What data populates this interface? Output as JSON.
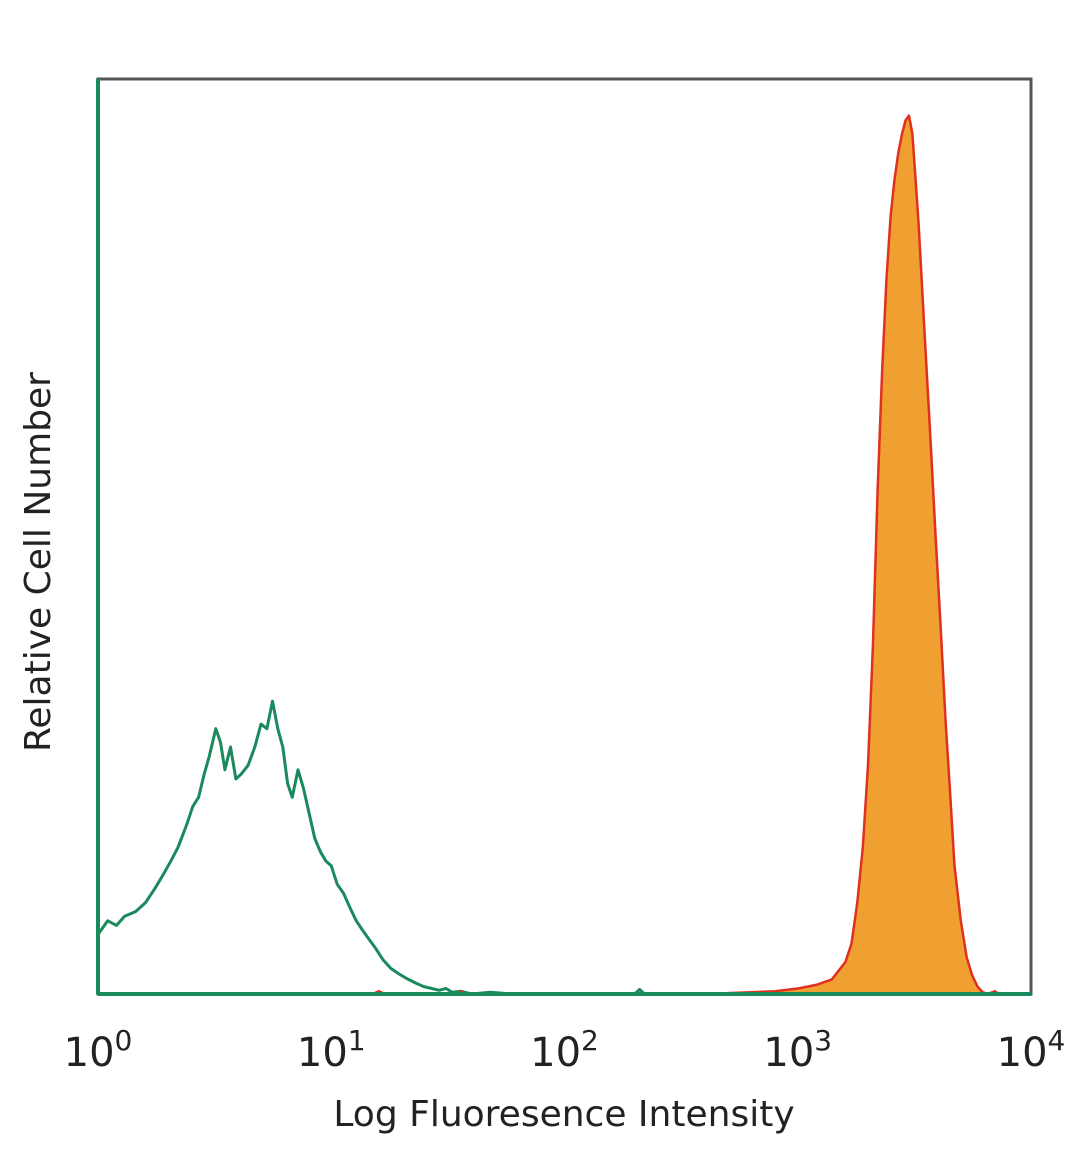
{
  "chart_data": {
    "type": "area",
    "xscale": "log",
    "xlim": [
      1,
      10000
    ],
    "ylim": [
      0,
      100
    ],
    "xlabel": "Log Fluoresence Intensity",
    "ylabel": "Relative Cell Number",
    "grid": false,
    "xticks": [
      {
        "value": 1,
        "base": "10",
        "exp": "0"
      },
      {
        "value": 10,
        "base": "10",
        "exp": "1"
      },
      {
        "value": 100,
        "base": "10",
        "exp": "2"
      },
      {
        "value": 1000,
        "base": "10",
        "exp": "3"
      },
      {
        "value": 10000,
        "base": "10",
        "exp": "4"
      }
    ],
    "series": [
      {
        "kind": "outline",
        "color": "#1a8a5c",
        "points": [
          [
            1.0,
            6.5
          ],
          [
            1.1,
            8.0
          ],
          [
            1.2,
            7.5
          ],
          [
            1.3,
            8.5
          ],
          [
            1.45,
            9.0
          ],
          [
            1.6,
            10.0
          ],
          [
            1.75,
            11.5
          ],
          [
            1.9,
            13.0
          ],
          [
            2.05,
            14.5
          ],
          [
            2.2,
            16.0
          ],
          [
            2.4,
            18.5
          ],
          [
            2.55,
            20.5
          ],
          [
            2.7,
            21.5
          ],
          [
            2.85,
            24.0
          ],
          [
            3.0,
            26.0
          ],
          [
            3.2,
            29.0
          ],
          [
            3.35,
            27.5
          ],
          [
            3.5,
            24.5
          ],
          [
            3.7,
            27.0
          ],
          [
            3.9,
            23.5
          ],
          [
            4.1,
            24.0
          ],
          [
            4.4,
            25.0
          ],
          [
            4.7,
            27.0
          ],
          [
            5.0,
            29.5
          ],
          [
            5.3,
            29.0
          ],
          [
            5.6,
            32.0
          ],
          [
            5.9,
            29.0
          ],
          [
            6.2,
            27.0
          ],
          [
            6.5,
            23.0
          ],
          [
            6.8,
            21.5
          ],
          [
            7.2,
            24.5
          ],
          [
            7.6,
            22.5
          ],
          [
            8.0,
            20.0
          ],
          [
            8.5,
            17.0
          ],
          [
            9.0,
            15.5
          ],
          [
            9.5,
            14.5
          ],
          [
            10.0,
            14.0
          ],
          [
            10.6,
            12.0
          ],
          [
            11.3,
            11.0
          ],
          [
            12.0,
            9.5
          ],
          [
            12.8,
            8.0
          ],
          [
            13.6,
            7.0
          ],
          [
            14.5,
            6.0
          ],
          [
            15.5,
            5.0
          ],
          [
            16.6,
            3.8
          ],
          [
            18.0,
            2.8
          ],
          [
            19.5,
            2.2
          ],
          [
            21.0,
            1.7
          ],
          [
            23.0,
            1.2
          ],
          [
            25.0,
            0.8
          ],
          [
            27.0,
            0.6
          ],
          [
            29.0,
            0.4
          ],
          [
            31.0,
            0.6
          ],
          [
            33.0,
            0.2
          ],
          [
            36.0,
            0.3
          ],
          [
            40.0,
            0.0
          ],
          [
            48.0,
            0.2
          ],
          [
            60.0,
            0.0
          ],
          [
            200.0,
            0.0
          ],
          [
            210.0,
            0.5
          ],
          [
            220.0,
            0.0
          ],
          [
            10000.0,
            0.0
          ]
        ]
      },
      {
        "kind": "filled",
        "color": "#f0a030",
        "stroke": "#e03020",
        "points": [
          [
            1.0,
            0.0
          ],
          [
            15.0,
            0.0
          ],
          [
            16.0,
            0.3
          ],
          [
            17.0,
            0.0
          ],
          [
            35.0,
            0.0
          ],
          [
            36.0,
            0.3
          ],
          [
            37.0,
            0.0
          ],
          [
            200.0,
            0.0
          ],
          [
            500.0,
            0.1
          ],
          [
            800.0,
            0.3
          ],
          [
            1000.0,
            0.6
          ],
          [
            1200.0,
            1.0
          ],
          [
            1400.0,
            1.6
          ],
          [
            1600.0,
            3.5
          ],
          [
            1700.0,
            5.5
          ],
          [
            1800.0,
            10.0
          ],
          [
            1900.0,
            16.0
          ],
          [
            2000.0,
            25.0
          ],
          [
            2100.0,
            38.0
          ],
          [
            2200.0,
            55.0
          ],
          [
            2300.0,
            68.0
          ],
          [
            2400.0,
            78.0
          ],
          [
            2500.0,
            85.0
          ],
          [
            2600.0,
            89.0
          ],
          [
            2700.0,
            92.0
          ],
          [
            2800.0,
            94.0
          ],
          [
            2900.0,
            95.5
          ],
          [
            3000.0,
            96.0
          ],
          [
            3100.0,
            94.0
          ],
          [
            3200.0,
            89.0
          ],
          [
            3300.0,
            84.0
          ],
          [
            3400.0,
            78.0
          ],
          [
            3500.0,
            72.0
          ],
          [
            3700.0,
            61.0
          ],
          [
            3900.0,
            50.0
          ],
          [
            4100.0,
            40.0
          ],
          [
            4300.0,
            30.0
          ],
          [
            4500.0,
            22.0
          ],
          [
            4700.0,
            14.0
          ],
          [
            5000.0,
            8.0
          ],
          [
            5300.0,
            4.0
          ],
          [
            5600.0,
            2.0
          ],
          [
            5900.0,
            0.8
          ],
          [
            6200.0,
            0.2
          ],
          [
            6500.0,
            0.0
          ],
          [
            7000.0,
            0.3
          ],
          [
            7300.0,
            0.0
          ],
          [
            10000.0,
            0.0
          ]
        ]
      }
    ]
  }
}
